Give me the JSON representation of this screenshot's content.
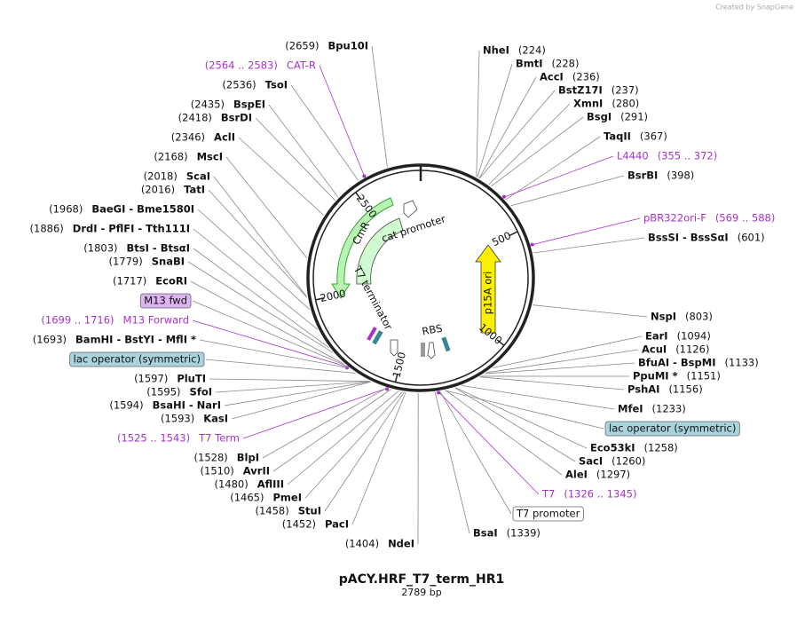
{
  "credit": "Created by SnapGene",
  "title": "pACY.HRF_T7_term_HR1",
  "subtitle": "2789 bp",
  "ring_ticks": [
    "500",
    "1000",
    "1500",
    "2000",
    "2500"
  ],
  "features": {
    "cmr": "CmR",
    "cat_promoter": "cat promoter",
    "t7_terminator": "T7 terminator",
    "rbs": "RBS",
    "p15a_ori": "p15A ori"
  },
  "left_labels": [
    {
      "name": "Bpu10I",
      "pos": "(2659)"
    },
    {
      "name": "CAT-R",
      "pos": "(2564 .. 2583)",
      "color": "#a433c8"
    },
    {
      "name": "TsoI",
      "pos": "(2536)"
    },
    {
      "name": "BspEI",
      "pos": "(2435)"
    },
    {
      "name": "BsrDI",
      "pos": "(2418)"
    },
    {
      "name": "AclI",
      "pos": "(2346)"
    },
    {
      "name": "MscI",
      "pos": "(2168)"
    },
    {
      "name": "ScaI",
      "pos": "(2018)"
    },
    {
      "name": "TatI",
      "pos": "(2016)"
    },
    {
      "name": "BaeGI - Bme1580I",
      "pos": "(1968)"
    },
    {
      "name": "DrdI - PflFI - Tth111I",
      "pos": "(1886)"
    },
    {
      "name": "BtsI - BtsαI",
      "pos": "(1803)"
    },
    {
      "name": "SnaBI",
      "pos": "(1779)"
    },
    {
      "name": "EcoRI",
      "pos": "(1717)"
    },
    {
      "name": "M13 fwd",
      "fill": "#dcb4f2"
    },
    {
      "name": "M13 Forward",
      "pos": "(1699 .. 1716)",
      "color": "#a433c8"
    },
    {
      "name": "BamHI - BstYI - MflI *",
      "pos": "(1693)"
    },
    {
      "name": "lac operator (symmetric)",
      "fill": "#a9d3dd"
    },
    {
      "name": "PluTI",
      "pos": "(1597)"
    },
    {
      "name": "SfoI",
      "pos": "(1595)"
    },
    {
      "name": "BsaHI - NarI",
      "pos": "(1594)"
    },
    {
      "name": "KasI",
      "pos": "(1593)"
    },
    {
      "name": "T7 Term",
      "pos": "(1525 .. 1543)",
      "color": "#a433c8"
    },
    {
      "name": "BlpI",
      "pos": "(1528)"
    },
    {
      "name": "AvrII",
      "pos": "(1510)"
    },
    {
      "name": "AflIII",
      "pos": "(1480)"
    },
    {
      "name": "PmeI",
      "pos": "(1465)"
    },
    {
      "name": "StuI",
      "pos": "(1458)"
    },
    {
      "name": "PacI",
      "pos": "(1452)"
    },
    {
      "name": "NdeI",
      "pos": "(1404)"
    }
  ],
  "right_labels": [
    {
      "name": "NheI",
      "pos": "(224)"
    },
    {
      "name": "BmtI",
      "pos": "(228)"
    },
    {
      "name": "AccI",
      "pos": "(236)"
    },
    {
      "name": "BstZ17I",
      "pos": "(237)"
    },
    {
      "name": "XmnI",
      "pos": "(280)"
    },
    {
      "name": "BsgI",
      "pos": "(291)"
    },
    {
      "name": "TaqII",
      "pos": "(367)"
    },
    {
      "name": "L4440",
      "pos": "(355 .. 372)",
      "color": "#a433c8"
    },
    {
      "name": "BsrBI",
      "pos": "(398)"
    },
    {
      "name": "pBR322ori-F",
      "pos": "(569 .. 588)",
      "color": "#a433c8"
    },
    {
      "name": "BssSI - BssSαI",
      "pos": "(601)"
    },
    {
      "name": "NspI",
      "pos": "(803)"
    },
    {
      "name": "EarI",
      "pos": "(1094)"
    },
    {
      "name": "AcuI",
      "pos": "(1126)"
    },
    {
      "name": "BfuAI - BspMI",
      "pos": "(1133)"
    },
    {
      "name": "PpuMI *",
      "pos": "(1151)"
    },
    {
      "name": "PshAI",
      "pos": "(1156)"
    },
    {
      "name": "MfeI",
      "pos": "(1233)"
    },
    {
      "name": "lac operator (symmetric)",
      "fill": "#a9d3dd"
    },
    {
      "name": "Eco53kI",
      "pos": "(1258)"
    },
    {
      "name": "SacI",
      "pos": "(1260)"
    },
    {
      "name": "AleI",
      "pos": "(1297)"
    },
    {
      "name": "T7",
      "pos": "(1326 .. 1345)",
      "color": "#a433c8"
    },
    {
      "name": "T7 promoter",
      "fill": "#ffffff"
    },
    {
      "name": "BsaI",
      "pos": "(1339)"
    }
  ]
}
